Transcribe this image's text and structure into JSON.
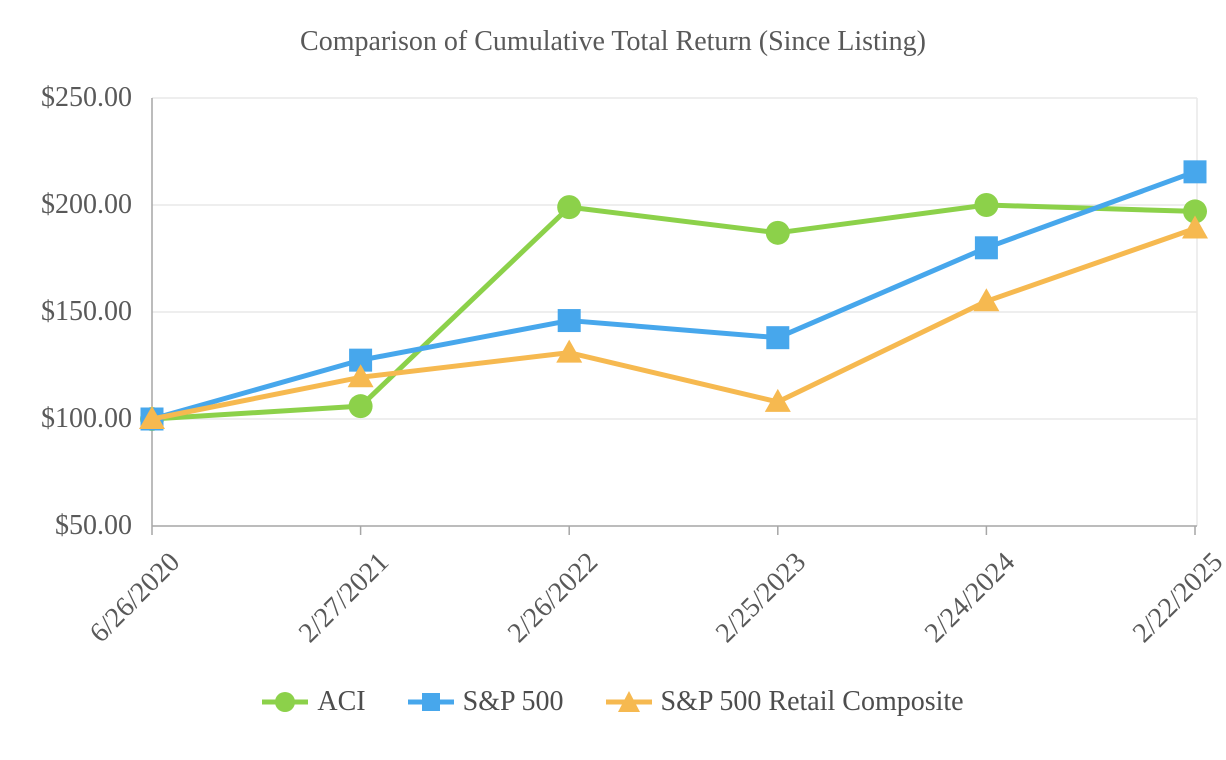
{
  "chart_data": {
    "type": "line",
    "title": "Comparison of Cumulative Total Return (Since Listing)",
    "x": [
      "6/26/2020",
      "2/27/2021",
      "2/26/2022",
      "2/25/2023",
      "2/24/2024",
      "2/22/2025"
    ],
    "y_ticks": [
      250,
      200,
      150,
      100,
      50
    ],
    "y_tick_labels": [
      "$250.00",
      "$200.00",
      "$150.00",
      "$100.00",
      "$50.00"
    ],
    "ylim": [
      50,
      250
    ],
    "grid": true,
    "legend_position": "bottom",
    "series": [
      {
        "name": "ACI",
        "marker": "circle",
        "color": "#8CD14A",
        "values": [
          100,
          106,
          199,
          187,
          200,
          197
        ]
      },
      {
        "name": "S&P 500",
        "marker": "square",
        "color": "#47A7EC",
        "values": [
          100,
          127.5,
          146,
          138,
          180,
          215.5
        ]
      },
      {
        "name": "S&P 500 Retail Composite",
        "marker": "triangle",
        "color": "#F6B950",
        "values": [
          100,
          119.5,
          131,
          108,
          155,
          189
        ]
      }
    ],
    "colors": {
      "axis_line": "#A6A6A6",
      "gridline": "#E9E9E9",
      "axis_text": "#595959",
      "legend_text": "#4d4d4d"
    }
  }
}
